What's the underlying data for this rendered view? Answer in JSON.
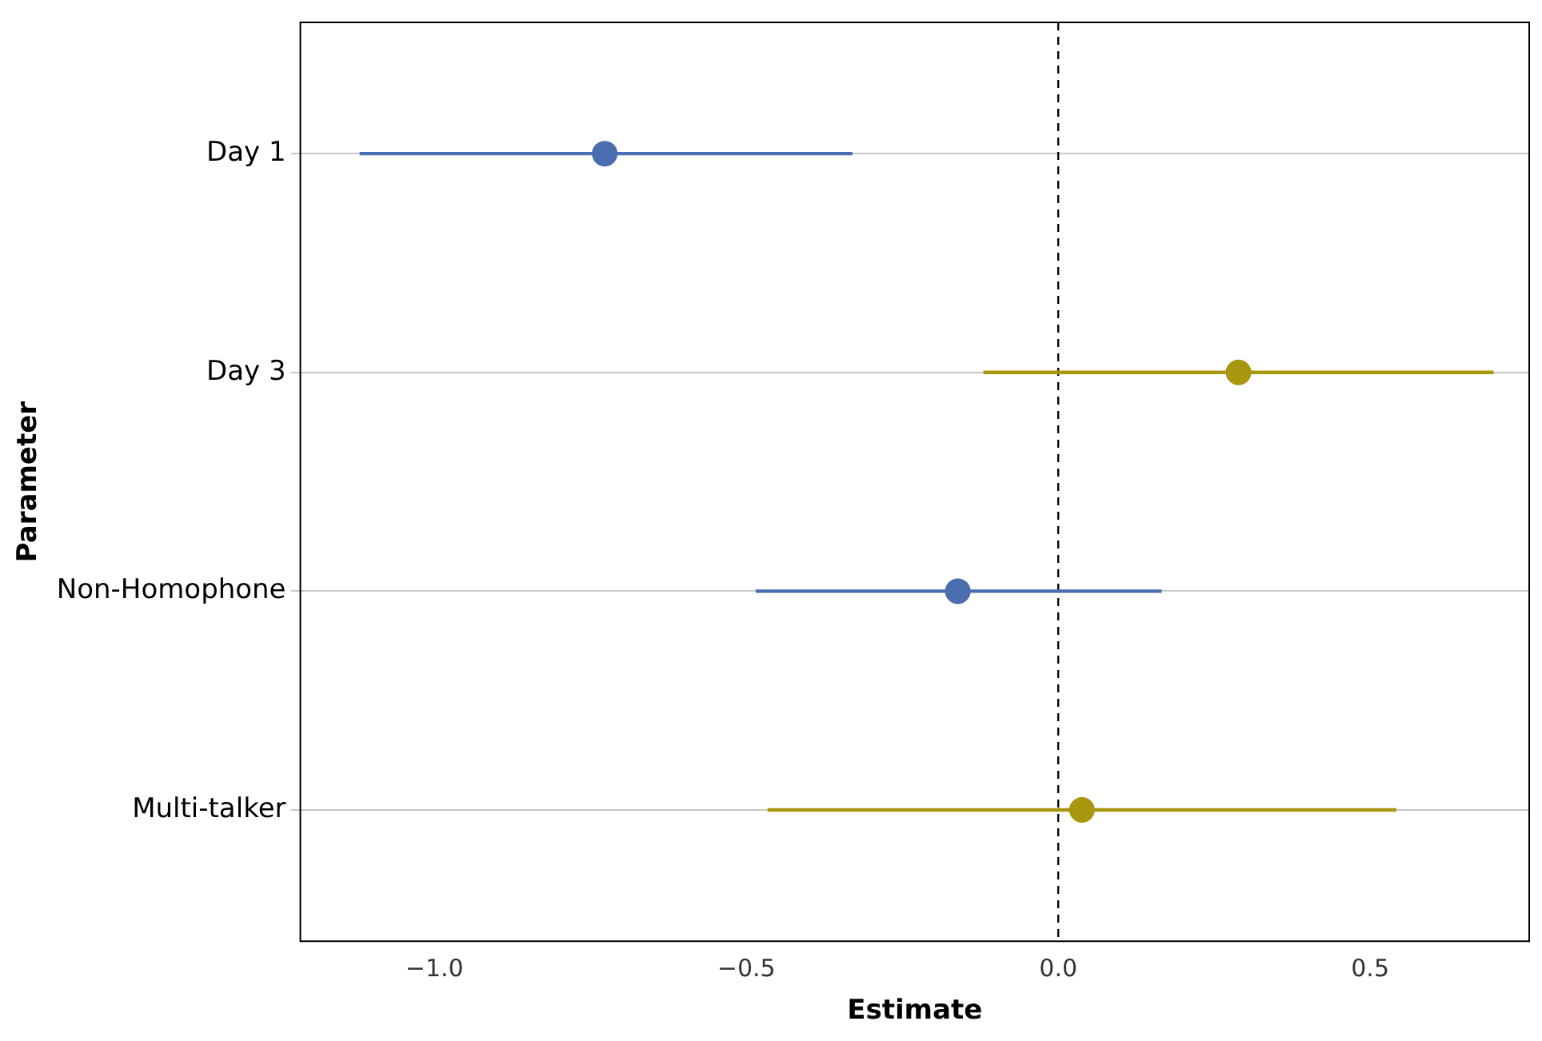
{
  "chart_data": {
    "type": "scatter",
    "orientation": "horizontal",
    "xlabel": "Estimate",
    "ylabel": "Parameter",
    "categories": [
      "Day 1",
      "Day 3",
      "Non-Homophone",
      "Multi-talker"
    ],
    "values": [
      -0.727,
      0.289,
      -0.161,
      0.038
    ],
    "errors": [
      [
        -1.12,
        -0.33
      ],
      [
        -0.12,
        0.698
      ],
      [
        -0.485,
        0.166
      ],
      [
        -0.466,
        0.542
      ]
    ],
    "colors": [
      "#4a6eb0",
      "#a8960f",
      "#4a6eb0",
      "#a8960f"
    ],
    "xlim": [
      -1.215,
      0.755
    ],
    "xticks": [
      {
        "value": -1,
        "label": "−1.0"
      },
      {
        "value": -0.5,
        "label": "−0.5"
      },
      {
        "value": 0,
        "label": "0.0"
      },
      {
        "value": 0.5,
        "label": "0.5"
      }
    ],
    "ref_lines": [
      {
        "axis": "x",
        "value": 0,
        "color": "#000000",
        "line_style": "dashed"
      }
    ],
    "grid": "y",
    "marker": "circle"
  }
}
